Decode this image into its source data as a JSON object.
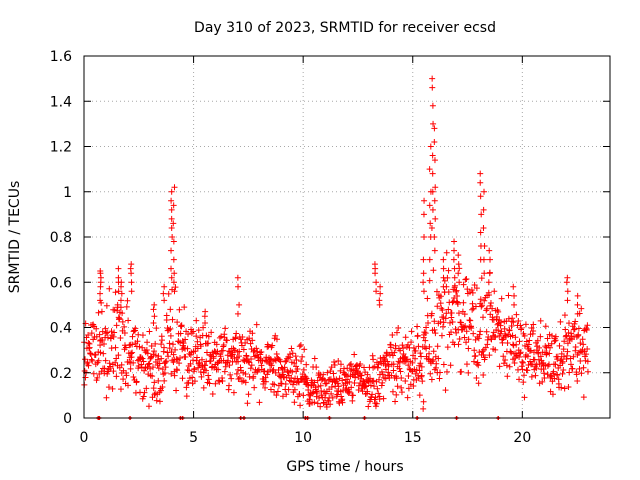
{
  "chart_data": {
    "type": "scatter",
    "title": "Day 310 of 2023, SRMTID for receiver ecsd",
    "xlabel": "GPS time / hours",
    "ylabel": "SRMTID / TECUs",
    "xlim": [
      0,
      24
    ],
    "ylim": [
      0,
      1.6
    ],
    "xticks": [
      0,
      5,
      10,
      15,
      20
    ],
    "xtick_labels": [
      "0",
      "5",
      "10",
      "15",
      "20"
    ],
    "yticks": [
      0,
      0.2,
      0.4,
      0.6,
      0.8,
      1,
      1.2,
      1.4,
      1.6
    ],
    "ytick_labels": [
      "0",
      "0.2",
      "0.4",
      "0.6",
      "0.8",
      "1",
      "1.2",
      "1.4",
      "1.6"
    ],
    "grid": true,
    "marker": "plus",
    "color": "#ff0000",
    "trend": [
      [
        0.0,
        0.25
      ],
      [
        0.5,
        0.32
      ],
      [
        1.0,
        0.33
      ],
      [
        1.5,
        0.34
      ],
      [
        2.0,
        0.32
      ],
      [
        2.5,
        0.22
      ],
      [
        3.0,
        0.24
      ],
      [
        3.5,
        0.27
      ],
      [
        4.0,
        0.36
      ],
      [
        4.5,
        0.3
      ],
      [
        5.0,
        0.25
      ],
      [
        5.5,
        0.27
      ],
      [
        6.0,
        0.26
      ],
      [
        6.5,
        0.25
      ],
      [
        7.0,
        0.27
      ],
      [
        7.5,
        0.25
      ],
      [
        8.0,
        0.23
      ],
      [
        8.5,
        0.22
      ],
      [
        9.0,
        0.21
      ],
      [
        9.5,
        0.2
      ],
      [
        10.0,
        0.19
      ],
      [
        10.5,
        0.13
      ],
      [
        11.0,
        0.12
      ],
      [
        11.5,
        0.15
      ],
      [
        12.0,
        0.16
      ],
      [
        12.5,
        0.17
      ],
      [
        13.0,
        0.16
      ],
      [
        13.5,
        0.17
      ],
      [
        14.0,
        0.24
      ],
      [
        14.5,
        0.25
      ],
      [
        15.0,
        0.24
      ],
      [
        15.5,
        0.26
      ],
      [
        16.0,
        0.42
      ],
      [
        16.5,
        0.44
      ],
      [
        17.0,
        0.44
      ],
      [
        17.5,
        0.4
      ],
      [
        18.0,
        0.37
      ],
      [
        18.5,
        0.42
      ],
      [
        19.0,
        0.38
      ],
      [
        19.5,
        0.33
      ],
      [
        20.0,
        0.3
      ],
      [
        20.5,
        0.26
      ],
      [
        21.0,
        0.25
      ],
      [
        21.5,
        0.26
      ],
      [
        22.0,
        0.29
      ],
      [
        22.5,
        0.31
      ],
      [
        23.0,
        0.27
      ]
    ],
    "spread": [
      [
        0.0,
        0.06
      ],
      [
        1.0,
        0.1
      ],
      [
        2.0,
        0.1
      ],
      [
        3.0,
        0.08
      ],
      [
        4.0,
        0.12
      ],
      [
        5.0,
        0.07
      ],
      [
        7.0,
        0.07
      ],
      [
        8.0,
        0.06
      ],
      [
        9.0,
        0.06
      ],
      [
        10.0,
        0.06
      ],
      [
        11.0,
        0.05
      ],
      [
        12.0,
        0.05
      ],
      [
        13.0,
        0.05
      ],
      [
        14.0,
        0.08
      ],
      [
        15.0,
        0.08
      ],
      [
        16.0,
        0.14
      ],
      [
        17.0,
        0.12
      ],
      [
        18.0,
        0.12
      ],
      [
        19.0,
        0.1
      ],
      [
        20.0,
        0.08
      ],
      [
        21.0,
        0.07
      ],
      [
        22.0,
        0.09
      ],
      [
        23.0,
        0.08
      ]
    ],
    "peaks": [
      {
        "x": 0.75,
        "heights": [
          0.52,
          0.55,
          0.58,
          0.6,
          0.62,
          0.64,
          0.65
        ]
      },
      {
        "x": 1.55,
        "heights": [
          0.5,
          0.56,
          0.6,
          0.62,
          0.66
        ]
      },
      {
        "x": 1.7,
        "heights": [
          0.52,
          0.55,
          0.58,
          0.6
        ]
      },
      {
        "x": 2.15,
        "heights": [
          0.56,
          0.6,
          0.64,
          0.66,
          0.68
        ]
      },
      {
        "x": 3.2,
        "heights": [
          0.42,
          0.45,
          0.48,
          0.5
        ]
      },
      {
        "x": 3.65,
        "heights": [
          0.52,
          0.55,
          0.58
        ]
      },
      {
        "x": 4.0,
        "heights": [
          0.62,
          0.66,
          0.74,
          0.8,
          0.84,
          0.88,
          0.92,
          0.96,
          1.0
        ]
      },
      {
        "x": 4.1,
        "heights": [
          0.56,
          0.6,
          0.64,
          0.7,
          0.78,
          0.86,
          0.94,
          1.02
        ]
      },
      {
        "x": 5.5,
        "heights": [
          0.42,
          0.45,
          0.47
        ]
      },
      {
        "x": 7.05,
        "heights": [
          0.46,
          0.5,
          0.58,
          0.62
        ]
      },
      {
        "x": 13.3,
        "heights": [
          0.56,
          0.6,
          0.64,
          0.66,
          0.68
        ]
      },
      {
        "x": 13.5,
        "heights": [
          0.5,
          0.52,
          0.55,
          0.58
        ]
      },
      {
        "x": 15.5,
        "heights": [
          0.56,
          0.6,
          0.64,
          0.7,
          0.8,
          0.9,
          0.96
        ]
      },
      {
        "x": 15.8,
        "heights": [
          0.7,
          0.8,
          0.86,
          0.94,
          1.0,
          1.1,
          1.2
        ]
      },
      {
        "x": 15.9,
        "heights": [
          0.84,
          0.92,
          1.0,
          1.08,
          1.16,
          1.3,
          1.38,
          1.46,
          1.5
        ]
      },
      {
        "x": 16.0,
        "heights": [
          0.74,
          0.8,
          0.88,
          0.96,
          1.02,
          1.14,
          1.22,
          1.28
        ]
      },
      {
        "x": 16.4,
        "heights": [
          0.58,
          0.62,
          0.66,
          0.7
        ]
      },
      {
        "x": 16.9,
        "heights": [
          0.62,
          0.66,
          0.7,
          0.74,
          0.78
        ]
      },
      {
        "x": 17.1,
        "heights": [
          0.6,
          0.64,
          0.68,
          0.72
        ]
      },
      {
        "x": 18.1,
        "heights": [
          0.7,
          0.76,
          0.82,
          0.9,
          0.98,
          1.04,
          1.08
        ]
      },
      {
        "x": 18.25,
        "heights": [
          0.64,
          0.7,
          0.76,
          0.84,
          0.92,
          1.0
        ]
      },
      {
        "x": 18.5,
        "heights": [
          0.6,
          0.64,
          0.7,
          0.74
        ]
      },
      {
        "x": 19.6,
        "heights": [
          0.5,
          0.54,
          0.58
        ]
      },
      {
        "x": 22.05,
        "heights": [
          0.52,
          0.56,
          0.6,
          0.62
        ]
      },
      {
        "x": 22.5,
        "heights": [
          0.46,
          0.5,
          0.54
        ]
      }
    ],
    "baseline_marks_x": [
      0.65,
      0.7,
      2.1,
      4.4,
      4.5,
      7.15,
      7.3,
      10.1,
      10.2,
      11.2,
      12.8,
      15.2,
      17.0,
      18.9
    ]
  }
}
